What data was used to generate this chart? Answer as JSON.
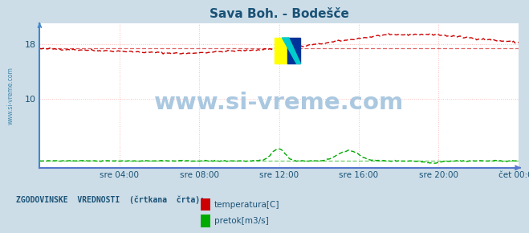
{
  "title": "Sava Boh. - Bodešče",
  "title_color": "#1a5276",
  "bg_color": "#ccdde8",
  "plot_bg_color": "#ffffff",
  "grid_color": "#ffbbbb",
  "tick_label_color": "#1a5276",
  "border_left_color": "#4488cc",
  "border_bottom_color": "#5577cc",
  "ylim": [
    0,
    21
  ],
  "yticks": [
    10,
    18
  ],
  "xtick_labels": [
    "sre 04:00",
    "sre 08:00",
    "sre 12:00",
    "sre 16:00",
    "sre 20:00",
    "čet 00:00"
  ],
  "n_points": 288,
  "temp_color": "#cc0000",
  "pretok_color": "#00aa00",
  "legend_text_color": "#1a5276",
  "legend_label": "ZGODOVINSKE  VREDNOSTI  (črtkana  črta):",
  "watermark": "www.si-vreme.com",
  "watermark_color": "#aac8e0",
  "side_label_color": "#4488aa",
  "logo_yellow": "#ffff00",
  "logo_blue": "#003399",
  "logo_cyan": "#00cccc"
}
